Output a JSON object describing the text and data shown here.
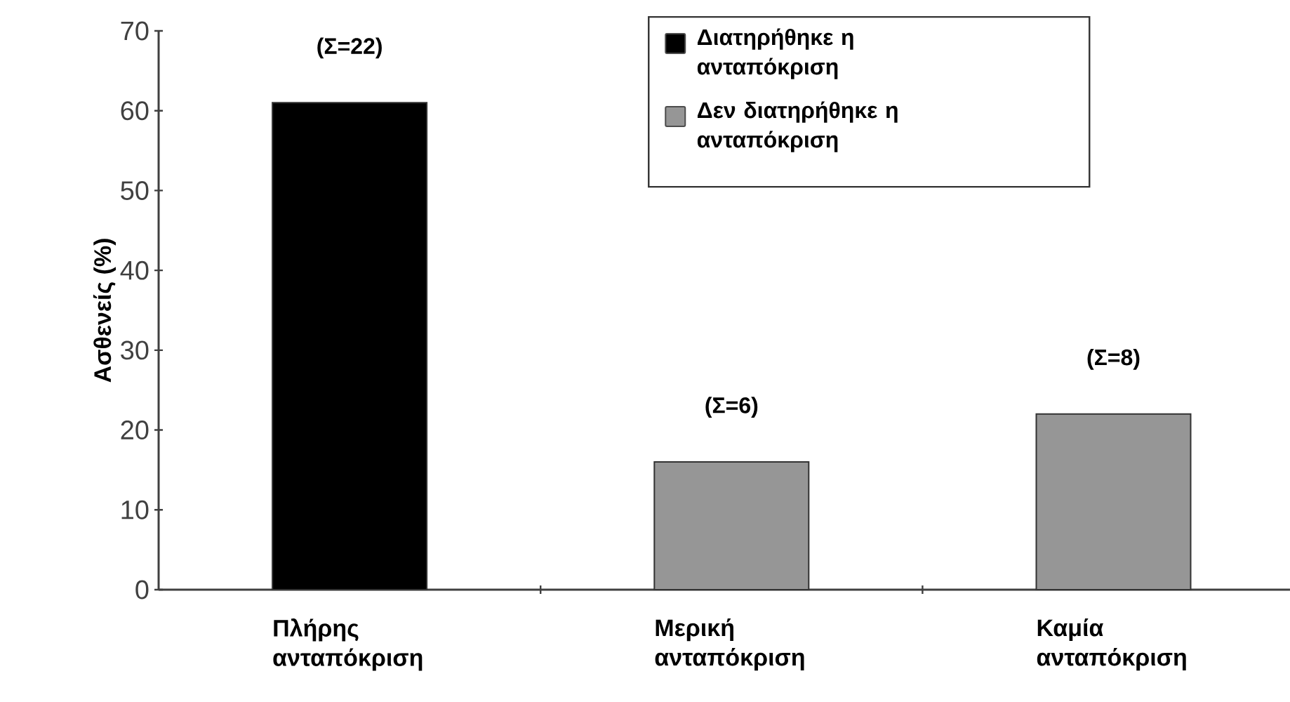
{
  "chart_data": {
    "type": "bar",
    "ylabel": "Ασθενείς (%)",
    "categories": [
      "Πλήρης ανταπόκριση",
      "Μερική ανταπόκριση",
      "Καμία ανταπόκριση"
    ],
    "series": [
      {
        "name": "Διατηρήθηκε η ανταπόκριση",
        "color": "#000000",
        "values": [
          61,
          null,
          null
        ]
      },
      {
        "name": "Δεν διατηρήθηκε η ανταπόκριση",
        "color": "#969696",
        "values": [
          null,
          16,
          22
        ]
      }
    ],
    "ylim": [
      0,
      70
    ],
    "yticks": [
      0,
      10,
      20,
      30,
      40,
      50,
      60,
      70
    ],
    "annotations": [
      {
        "text": "(Σ=22)",
        "x": "Πλήρης ανταπόκριση",
        "y": 61
      },
      {
        "text": "(Σ=6)",
        "x": "Μερική ανταπόκριση",
        "y": 16
      },
      {
        "text": "(Σ=8)",
        "x": "Καμία ανταπόκριση",
        "y": 22
      }
    ],
    "legend": "top right",
    "grid": false
  }
}
